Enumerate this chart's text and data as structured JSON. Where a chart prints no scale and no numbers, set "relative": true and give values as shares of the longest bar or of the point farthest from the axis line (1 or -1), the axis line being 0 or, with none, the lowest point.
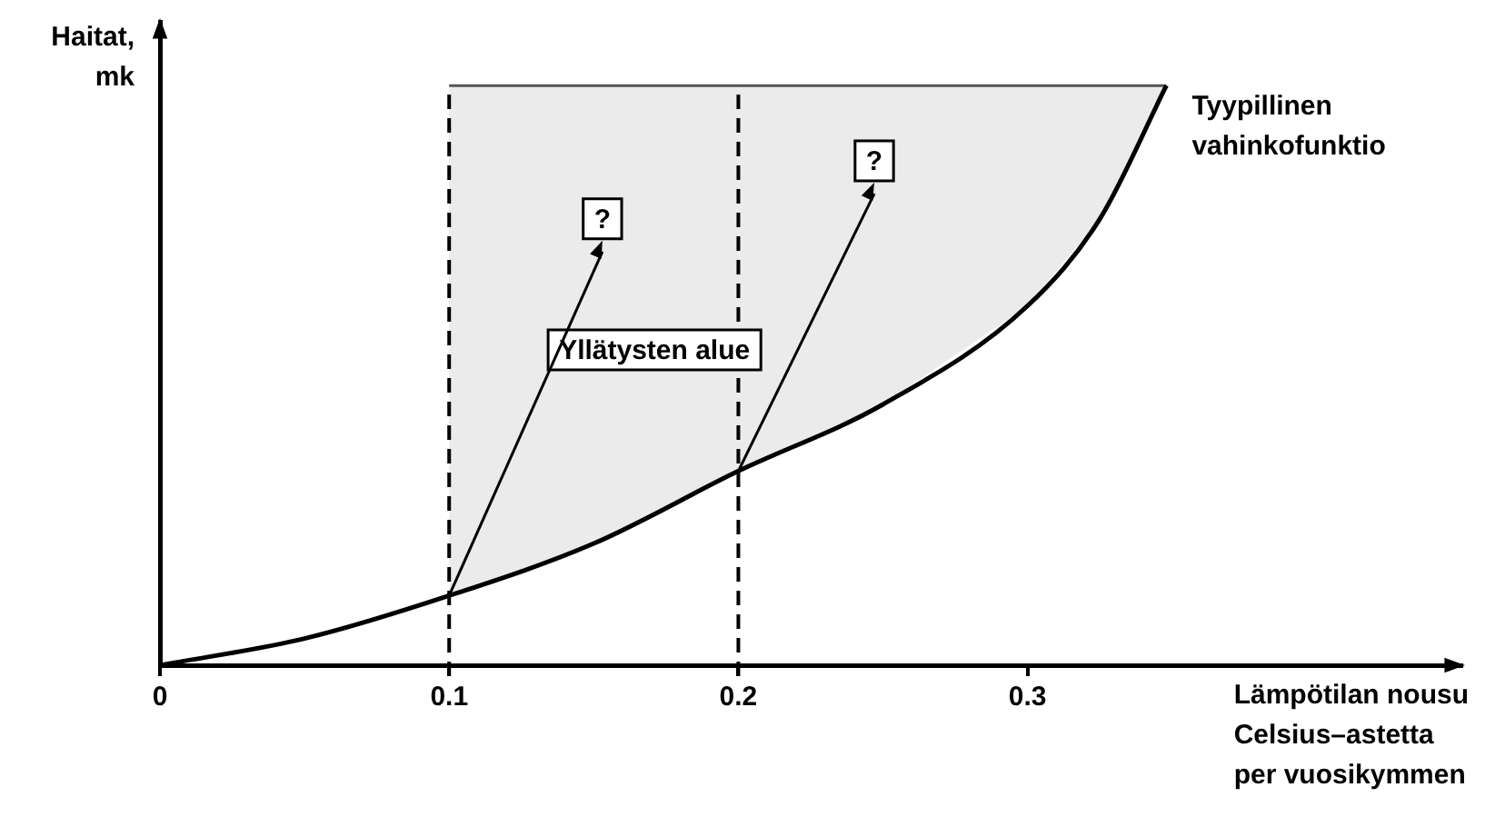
{
  "chart_data": {
    "type": "line",
    "relative": true,
    "x": [
      0,
      0.05,
      0.1,
      0.15,
      0.2,
      0.25,
      0.3,
      0.325,
      0.348
    ],
    "series": [
      {
        "name": "Tyypillinen vahinkofunktio",
        "color": "#000000",
        "values": [
          0,
          0.046,
          0.12,
          0.21,
          0.335,
          0.45,
          0.62,
          0.77,
          1
        ],
        "lower": [
          null,
          null,
          0.12,
          0.21,
          0.335,
          0.45,
          0.62,
          0.77,
          1
        ],
        "upper": [
          null,
          null,
          1,
          1,
          1,
          1,
          1,
          1,
          1
        ]
      }
    ],
    "xlim": [
      0,
      0.45
    ],
    "xticks": [
      0,
      0.1,
      0.2,
      0.3
    ],
    "xlabel": "Lämpötilan nousu\nCelsius–astetta\nper vuosikymmen",
    "ylabel": "Haitat,\nmk",
    "ref_lines": [
      {
        "axis": "x",
        "value": 0.1,
        "line_style": "dashed"
      },
      {
        "axis": "x",
        "value": 0.2,
        "line_style": "dashed"
      }
    ],
    "annotations": [
      {
        "text": "?",
        "x": 0.153,
        "y": 0.77
      },
      {
        "text": "?",
        "x": 0.247,
        "y": 0.87
      },
      "Yllätysten alue"
    ]
  }
}
